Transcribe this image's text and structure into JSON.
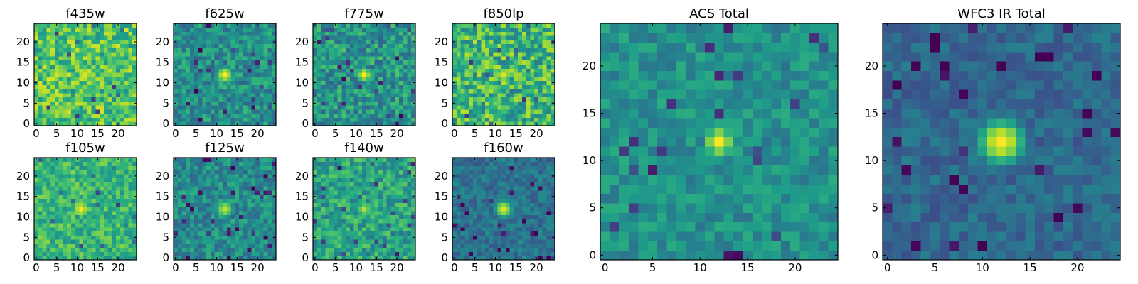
{
  "figure": {
    "description_colormap": "viridis",
    "pixel_grid": "25x25"
  },
  "colormap": {
    "name": "viridis",
    "stops": [
      "#440154",
      "#482878",
      "#3e4989",
      "#31688e",
      "#26828e",
      "#1f9e89",
      "#35b779",
      "#6ece58",
      "#b5de2b",
      "#fde725"
    ]
  },
  "chart_data": [
    {
      "type": "heatmap",
      "title": "f435w",
      "grid": 25,
      "xticks": [
        "0",
        "5",
        "10",
        "15",
        "20"
      ],
      "yticks": [
        "0",
        "5",
        "10",
        "15",
        "20"
      ],
      "xlim": [
        -0.5,
        24.5
      ],
      "ylim": [
        -0.5,
        24.5
      ],
      "source_xy": [
        12,
        12
      ],
      "source_peak": 0.95,
      "source_sigma": 2.0,
      "background": 0.72,
      "noise": 0.22,
      "seed": 11
    },
    {
      "type": "heatmap",
      "title": "f625w",
      "grid": 25,
      "xticks": [
        "0",
        "5",
        "10",
        "15",
        "20"
      ],
      "yticks": [
        "0",
        "5",
        "10",
        "15",
        "20"
      ],
      "xlim": [
        -0.5,
        24.5
      ],
      "ylim": [
        -0.5,
        24.5
      ],
      "source_xy": [
        12,
        12
      ],
      "source_peak": 1.0,
      "source_sigma": 1.8,
      "background": 0.5,
      "noise": 0.18,
      "seed": 23
    },
    {
      "type": "heatmap",
      "title": "f775w",
      "grid": 25,
      "xticks": [
        "0",
        "5",
        "10",
        "15",
        "20"
      ],
      "yticks": [
        "0",
        "5",
        "10",
        "15",
        "20"
      ],
      "xlim": [
        -0.5,
        24.5
      ],
      "ylim": [
        -0.5,
        24.5
      ],
      "source_xy": [
        12,
        12
      ],
      "source_peak": 1.0,
      "source_sigma": 1.6,
      "background": 0.52,
      "noise": 0.2,
      "seed": 37
    },
    {
      "type": "heatmap",
      "title": "f850lp",
      "grid": 25,
      "xticks": [
        "0",
        "5",
        "10",
        "15",
        "20"
      ],
      "yticks": [
        "0",
        "5",
        "10",
        "15",
        "20"
      ],
      "xlim": [
        -0.5,
        24.5
      ],
      "ylim": [
        -0.5,
        24.5
      ],
      "source_xy": [
        12,
        12
      ],
      "source_peak": 0.95,
      "source_sigma": 1.8,
      "background": 0.66,
      "noise": 0.24,
      "seed": 41
    },
    {
      "type": "heatmap",
      "title": "f105w",
      "grid": 25,
      "xticks": [
        "0",
        "5",
        "10",
        "15",
        "20"
      ],
      "yticks": [
        "0",
        "5",
        "10",
        "15",
        "20"
      ],
      "xlim": [
        -0.5,
        24.5
      ],
      "ylim": [
        -0.5,
        24.5
      ],
      "source_xy": [
        11,
        12
      ],
      "source_peak": 1.0,
      "source_sigma": 1.9,
      "background": 0.66,
      "noise": 0.16,
      "seed": 53
    },
    {
      "type": "heatmap",
      "title": "f125w",
      "grid": 25,
      "xticks": [
        "0",
        "5",
        "10",
        "15",
        "20"
      ],
      "yticks": [
        "0",
        "5",
        "10",
        "15",
        "20"
      ],
      "xlim": [
        -0.5,
        24.5
      ],
      "ylim": [
        -0.5,
        24.5
      ],
      "source_xy": [
        12,
        12
      ],
      "source_peak": 0.9,
      "source_sigma": 2.0,
      "background": 0.48,
      "noise": 0.16,
      "seed": 67
    },
    {
      "type": "heatmap",
      "title": "f140w",
      "grid": 25,
      "xticks": [
        "0",
        "5",
        "10",
        "15",
        "20"
      ],
      "yticks": [
        "0",
        "5",
        "10",
        "15",
        "20"
      ],
      "xlim": [
        -0.5,
        24.5
      ],
      "ylim": [
        -0.5,
        24.5
      ],
      "source_xy": [
        12,
        12
      ],
      "source_peak": 0.9,
      "source_sigma": 1.6,
      "background": 0.58,
      "noise": 0.18,
      "seed": 71
    },
    {
      "type": "heatmap",
      "title": "f160w",
      "grid": 25,
      "xticks": [
        "0",
        "5",
        "10",
        "15",
        "20"
      ],
      "yticks": [
        "0",
        "5",
        "10",
        "15",
        "20"
      ],
      "xlim": [
        -0.5,
        24.5
      ],
      "ylim": [
        -0.5,
        24.5
      ],
      "source_xy": [
        12,
        12
      ],
      "source_peak": 0.95,
      "source_sigma": 1.9,
      "background": 0.38,
      "noise": 0.12,
      "seed": 83
    },
    {
      "type": "heatmap",
      "title": "ACS Total",
      "grid": 25,
      "xticks": [
        "0",
        "5",
        "10",
        "15",
        "20"
      ],
      "yticks": [
        "0",
        "5",
        "10",
        "15",
        "20"
      ],
      "xlim": [
        -0.5,
        24.5
      ],
      "ylim": [
        -0.5,
        24.5
      ],
      "source_xy": [
        12,
        12
      ],
      "source_peak": 1.0,
      "source_sigma": 1.5,
      "background": 0.5,
      "noise": 0.12,
      "seed": 97
    },
    {
      "type": "heatmap",
      "title": "WFC3 IR Total",
      "grid": 25,
      "xticks": [
        "0",
        "5",
        "10",
        "15",
        "20"
      ],
      "yticks": [
        "0",
        "5",
        "10",
        "15",
        "20"
      ],
      "xlim": [
        -0.5,
        24.5
      ],
      "ylim": [
        -0.5,
        24.5
      ],
      "source_xy": [
        12,
        12
      ],
      "source_peak": 1.0,
      "source_sigma": 2.1,
      "background": 0.34,
      "noise": 0.1,
      "seed": 109
    }
  ]
}
